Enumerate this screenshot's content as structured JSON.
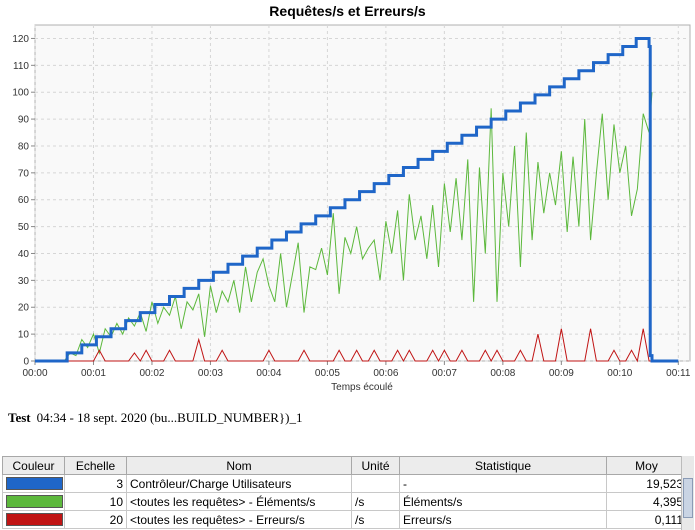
{
  "chart_data": {
    "type": "line",
    "title": "Requêtes/s et Erreurs/s",
    "xlabel": "Temps écoulé",
    "ylabel": "",
    "x_ticks": [
      "00:00",
      "00:01",
      "00:02",
      "00:03",
      "00:04",
      "00:05",
      "00:06",
      "00:07",
      "00:08",
      "00:09",
      "00:10",
      "00:11"
    ],
    "xlim": [
      0,
      11.2
    ],
    "ylim": [
      0,
      125
    ],
    "y_ticks": [
      0,
      10,
      20,
      30,
      40,
      50,
      60,
      70,
      80,
      90,
      100,
      110,
      120
    ],
    "grid": true,
    "legend": "table-below",
    "series": [
      {
        "name": "Contrôleur/Charge Utilisateurs",
        "color": "#1f66c8",
        "step": true,
        "x": [
          0,
          0.55,
          0.8,
          1.05,
          1.3,
          1.55,
          1.8,
          2.05,
          2.3,
          2.55,
          2.8,
          3.05,
          3.3,
          3.55,
          3.8,
          4.05,
          4.3,
          4.55,
          4.8,
          5.05,
          5.3,
          5.55,
          5.8,
          6.05,
          6.3,
          6.55,
          6.8,
          7.05,
          7.3,
          7.55,
          7.8,
          8.05,
          8.3,
          8.55,
          8.8,
          9.05,
          9.3,
          9.55,
          9.8,
          10.05,
          10.28,
          10.5,
          10.52,
          10.55,
          11.0
        ],
        "y": [
          0,
          3,
          6,
          9,
          12,
          15,
          18,
          21,
          24,
          27,
          30,
          33,
          36,
          39,
          42,
          45,
          48,
          51,
          54,
          57,
          60,
          63,
          66,
          69,
          72,
          75,
          78,
          81,
          84,
          87,
          90,
          93,
          96,
          99,
          102,
          105,
          108,
          111,
          114,
          117,
          120,
          117,
          2,
          0,
          0
        ]
      },
      {
        "name": "<toutes les requêtes> - Éléments/s",
        "color": "#5cb83c",
        "step": false,
        "x": [
          0,
          0.5,
          0.6,
          0.7,
          0.8,
          0.9,
          1.0,
          1.1,
          1.2,
          1.3,
          1.4,
          1.5,
          1.6,
          1.7,
          1.8,
          1.9,
          2.0,
          2.1,
          2.2,
          2.3,
          2.4,
          2.5,
          2.6,
          2.7,
          2.8,
          2.9,
          3.0,
          3.1,
          3.2,
          3.3,
          3.4,
          3.5,
          3.6,
          3.7,
          3.8,
          3.9,
          4.0,
          4.1,
          4.2,
          4.3,
          4.4,
          4.5,
          4.6,
          4.7,
          4.8,
          4.9,
          5.0,
          5.1,
          5.2,
          5.3,
          5.4,
          5.5,
          5.6,
          5.7,
          5.8,
          5.9,
          6.0,
          6.1,
          6.2,
          6.3,
          6.4,
          6.5,
          6.6,
          6.7,
          6.8,
          6.9,
          7.0,
          7.1,
          7.2,
          7.3,
          7.4,
          7.5,
          7.6,
          7.7,
          7.8,
          7.9,
          8.0,
          8.1,
          8.2,
          8.3,
          8.4,
          8.5,
          8.6,
          8.7,
          8.8,
          8.9,
          9.0,
          9.1,
          9.2,
          9.3,
          9.4,
          9.5,
          9.6,
          9.7,
          9.8,
          9.9,
          10.0,
          10.1,
          10.2,
          10.3,
          10.4,
          10.5,
          10.55
        ],
        "y": [
          0,
          0,
          3,
          2,
          8,
          5,
          10,
          3,
          12,
          9,
          14,
          10,
          16,
          13,
          18,
          11,
          22,
          14,
          20,
          17,
          24,
          12,
          22,
          19,
          25,
          9,
          28,
          18,
          26,
          22,
          30,
          18,
          35,
          22,
          33,
          38,
          28,
          22,
          40,
          20,
          32,
          44,
          18,
          35,
          34,
          42,
          32,
          55,
          25,
          46,
          40,
          50,
          38,
          42,
          45,
          30,
          52,
          40,
          56,
          30,
          62,
          45,
          54,
          38,
          58,
          35,
          66,
          48,
          68,
          45,
          75,
          22,
          72,
          40,
          94,
          22,
          70,
          50,
          80,
          35,
          85,
          45,
          74,
          55,
          70,
          58,
          78,
          48,
          76,
          50,
          90,
          45,
          70,
          92,
          60,
          88,
          70,
          80,
          54,
          64,
          92,
          85,
          100
        ],
        "range_note": "values approximate"
      },
      {
        "name": "<toutes les requêtes> - Erreurs/s",
        "color": "#c01414",
        "step": false,
        "x": [
          0,
          1.0,
          1.1,
          1.2,
          1.3,
          1.4,
          1.5,
          1.6,
          1.7,
          1.8,
          1.9,
          2.0,
          2.1,
          2.2,
          2.3,
          2.4,
          2.5,
          2.6,
          2.7,
          2.8,
          2.9,
          3.0,
          3.1,
          3.2,
          3.3,
          3.4,
          3.5,
          3.6,
          3.7,
          3.8,
          3.9,
          4.0,
          4.1,
          4.2,
          4.3,
          4.4,
          4.5,
          4.6,
          4.7,
          4.8,
          4.9,
          5.0,
          5.1,
          5.2,
          5.3,
          5.4,
          5.5,
          5.6,
          5.7,
          5.8,
          5.9,
          6.0,
          6.1,
          6.2,
          6.3,
          6.4,
          6.5,
          6.6,
          6.7,
          6.8,
          6.9,
          7.0,
          7.1,
          7.2,
          7.3,
          7.4,
          7.5,
          7.6,
          7.7,
          7.8,
          7.9,
          8.0,
          8.1,
          8.2,
          8.3,
          8.4,
          8.5,
          8.6,
          8.7,
          8.8,
          8.9,
          9.0,
          9.1,
          9.2,
          9.3,
          9.4,
          9.5,
          9.6,
          9.7,
          9.8,
          9.9,
          10.0,
          10.1,
          10.2,
          10.3,
          10.4,
          10.5,
          10.55
        ],
        "y": [
          0,
          0,
          4,
          0,
          0,
          0,
          0,
          0,
          3,
          0,
          4,
          0,
          0,
          0,
          4,
          0,
          0,
          0,
          0,
          8,
          0,
          0,
          0,
          4,
          0,
          0,
          0,
          0,
          0,
          0,
          0,
          4,
          0,
          0,
          0,
          0,
          0,
          4,
          0,
          0,
          0,
          0,
          0,
          4,
          0,
          0,
          4,
          0,
          0,
          4,
          0,
          0,
          0,
          4,
          0,
          4,
          0,
          0,
          0,
          4,
          0,
          4,
          0,
          0,
          4,
          0,
          0,
          0,
          4,
          0,
          4,
          0,
          0,
          0,
          4,
          0,
          0,
          10,
          0,
          0,
          0,
          12,
          0,
          0,
          0,
          0,
          12,
          0,
          0,
          0,
          4,
          0,
          0,
          4,
          0,
          12,
          0,
          0
        ]
      }
    ]
  },
  "test_info": {
    "label": "Test",
    "text": "04:34 - 18 sept. 2020 (bu...BUILD_NUMBER})_1"
  },
  "legend_table": {
    "headers": [
      "Couleur",
      "Echelle",
      "Nom",
      "Unité",
      "Statistique",
      "Moy"
    ],
    "rows": [
      {
        "color": "#1f66c8",
        "scale": "3",
        "name": "Contrôleur/Charge Utilisateurs",
        "unit": "",
        "stat": "-",
        "mean": "19,523"
      },
      {
        "color": "#5cb83c",
        "scale": "10",
        "name": "<toutes les requêtes> - Éléments/s",
        "unit": "/s",
        "stat": "Éléments/s",
        "mean": "4,395"
      },
      {
        "color": "#c01414",
        "scale": "20",
        "name": "<toutes les requêtes> - Erreurs/s",
        "unit": "/s",
        "stat": "Erreurs/s",
        "mean": "0,111"
      }
    ]
  }
}
